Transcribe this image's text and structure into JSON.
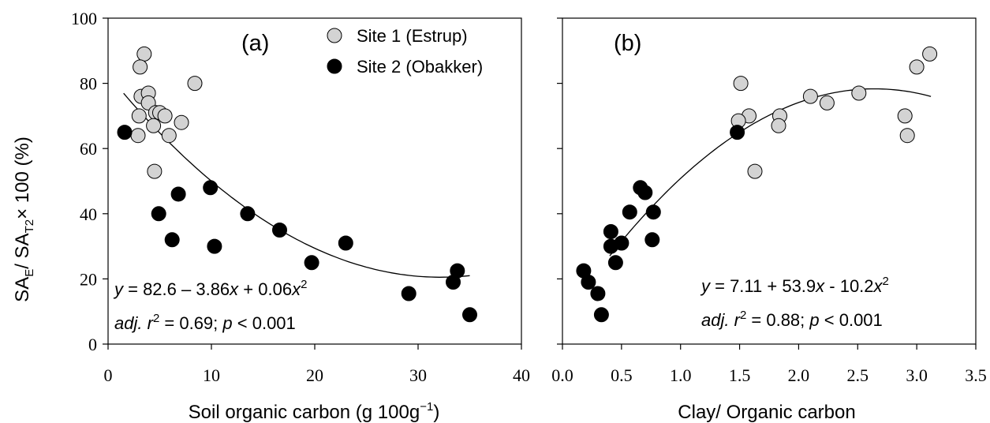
{
  "figure": {
    "ylabel": {
      "sa": "SA",
      "e": "E",
      "slash": "/ SA",
      "t2": "T2",
      "rest": "× 100 (%)"
    }
  },
  "chart_data": [
    {
      "type": "scatter",
      "panel_label": "(a)",
      "xlabel_main": "Soil organic carbon (g 100g",
      "xlabel_sup": "−1",
      "xlabel_end": ")",
      "xlim": [
        0,
        40
      ],
      "ylim": [
        0,
        100
      ],
      "xticks": [
        0,
        10,
        20,
        30,
        40
      ],
      "yticks": [
        0,
        20,
        40,
        60,
        80,
        100
      ],
      "xtick_labels": [
        "0",
        "10",
        "20",
        "30",
        "40"
      ],
      "ytick_labels": [
        "0",
        "20",
        "40",
        "60",
        "80",
        "100"
      ],
      "legend": [
        "Site 1 (Estrup)",
        "Site 2 (Obakker)"
      ],
      "legend_position": "top-right",
      "equation": {
        "y": "y",
        "lhs": " =  82.6 – 3.86",
        "x1": "x",
        "mid": " +  0.06",
        "x2": "x",
        "sup": "2"
      },
      "stats": {
        "adj": "adj.",
        "r": "r",
        "sup": "2",
        "mid": " =  0.69; ",
        "p": "p",
        "end": " < 0.001"
      },
      "fit": {
        "a": 82.6,
        "b": -3.86,
        "c": 0.06,
        "x_range": [
          1.5,
          35
        ]
      },
      "series": [
        {
          "name": "Site 1 (Estrup)",
          "color": "#d3d3d3",
          "points": [
            [
              3.5,
              89
            ],
            [
              3.1,
              85
            ],
            [
              3.2,
              76
            ],
            [
              3.0,
              70
            ],
            [
              2.9,
              64
            ],
            [
              3.9,
              77
            ],
            [
              3.9,
              74
            ],
            [
              4.6,
              71
            ],
            [
              5.0,
              71
            ],
            [
              5.5,
              70
            ],
            [
              4.4,
              67
            ],
            [
              5.9,
              64
            ],
            [
              7.1,
              68
            ],
            [
              4.5,
              53
            ],
            [
              8.4,
              80
            ]
          ]
        },
        {
          "name": "Site 2 (Obakker)",
          "color": "#000000",
          "points": [
            [
              1.6,
              65
            ],
            [
              6.8,
              46
            ],
            [
              9.9,
              48
            ],
            [
              4.9,
              40
            ],
            [
              6.2,
              32
            ],
            [
              10.3,
              30
            ],
            [
              13.5,
              40
            ],
            [
              16.6,
              35
            ],
            [
              19.7,
              25
            ],
            [
              23.0,
              31
            ],
            [
              29.1,
              15.5
            ],
            [
              33.8,
              22.5
            ],
            [
              33.4,
              19
            ],
            [
              35.0,
              9
            ]
          ]
        }
      ]
    },
    {
      "type": "scatter",
      "panel_label": "(b)",
      "xlabel_main": "Clay/ Organic carbon",
      "xlim": [
        0,
        3.5
      ],
      "ylim": [
        0,
        100
      ],
      "xticks": [
        0,
        0.5,
        1.0,
        1.5,
        2.0,
        2.5,
        3.0,
        3.5
      ],
      "xtick_labels": [
        "0.0",
        "0.5",
        "1.0",
        "1.5",
        "2.0",
        "2.5",
        "3.0",
        "3.5"
      ],
      "equation": {
        "y": "y",
        "lhs": " =  7.11 +  53.9",
        "x1": "x",
        "mid": " - 10.2",
        "x2": "x",
        "sup": "2"
      },
      "stats": {
        "adj": "adj.",
        "r": "r",
        "sup": "2",
        "mid": " =  0.88; ",
        "p": "p",
        "end": " < 0.001"
      },
      "fit": {
        "a": 7.11,
        "b": 53.9,
        "c": -10.2,
        "x_range": [
          0.4,
          3.12
        ]
      },
      "series": [
        {
          "name": "Site 1 (Estrup)",
          "color": "#d3d3d3",
          "points": [
            [
              3.11,
              89
            ],
            [
              3.0,
              85
            ],
            [
              1.51,
              80
            ],
            [
              2.1,
              76
            ],
            [
              2.51,
              77
            ],
            [
              2.24,
              74
            ],
            [
              1.84,
              70
            ],
            [
              2.9,
              70
            ],
            [
              1.58,
              70
            ],
            [
              1.49,
              68.5
            ],
            [
              1.83,
              67
            ],
            [
              2.92,
              64
            ],
            [
              1.63,
              53
            ]
          ]
        },
        {
          "name": "Site 2 (Obakker)",
          "color": "#000000",
          "points": [
            [
              1.48,
              65
            ],
            [
              0.66,
              48
            ],
            [
              0.7,
              46.5
            ],
            [
              0.57,
              40.5
            ],
            [
              0.77,
              40.5
            ],
            [
              0.41,
              34.5
            ],
            [
              0.5,
              31
            ],
            [
              0.41,
              30
            ],
            [
              0.76,
              32
            ],
            [
              0.45,
              25
            ],
            [
              0.18,
              22.5
            ],
            [
              0.22,
              19
            ],
            [
              0.3,
              15.5
            ],
            [
              0.33,
              9
            ]
          ]
        }
      ]
    }
  ]
}
